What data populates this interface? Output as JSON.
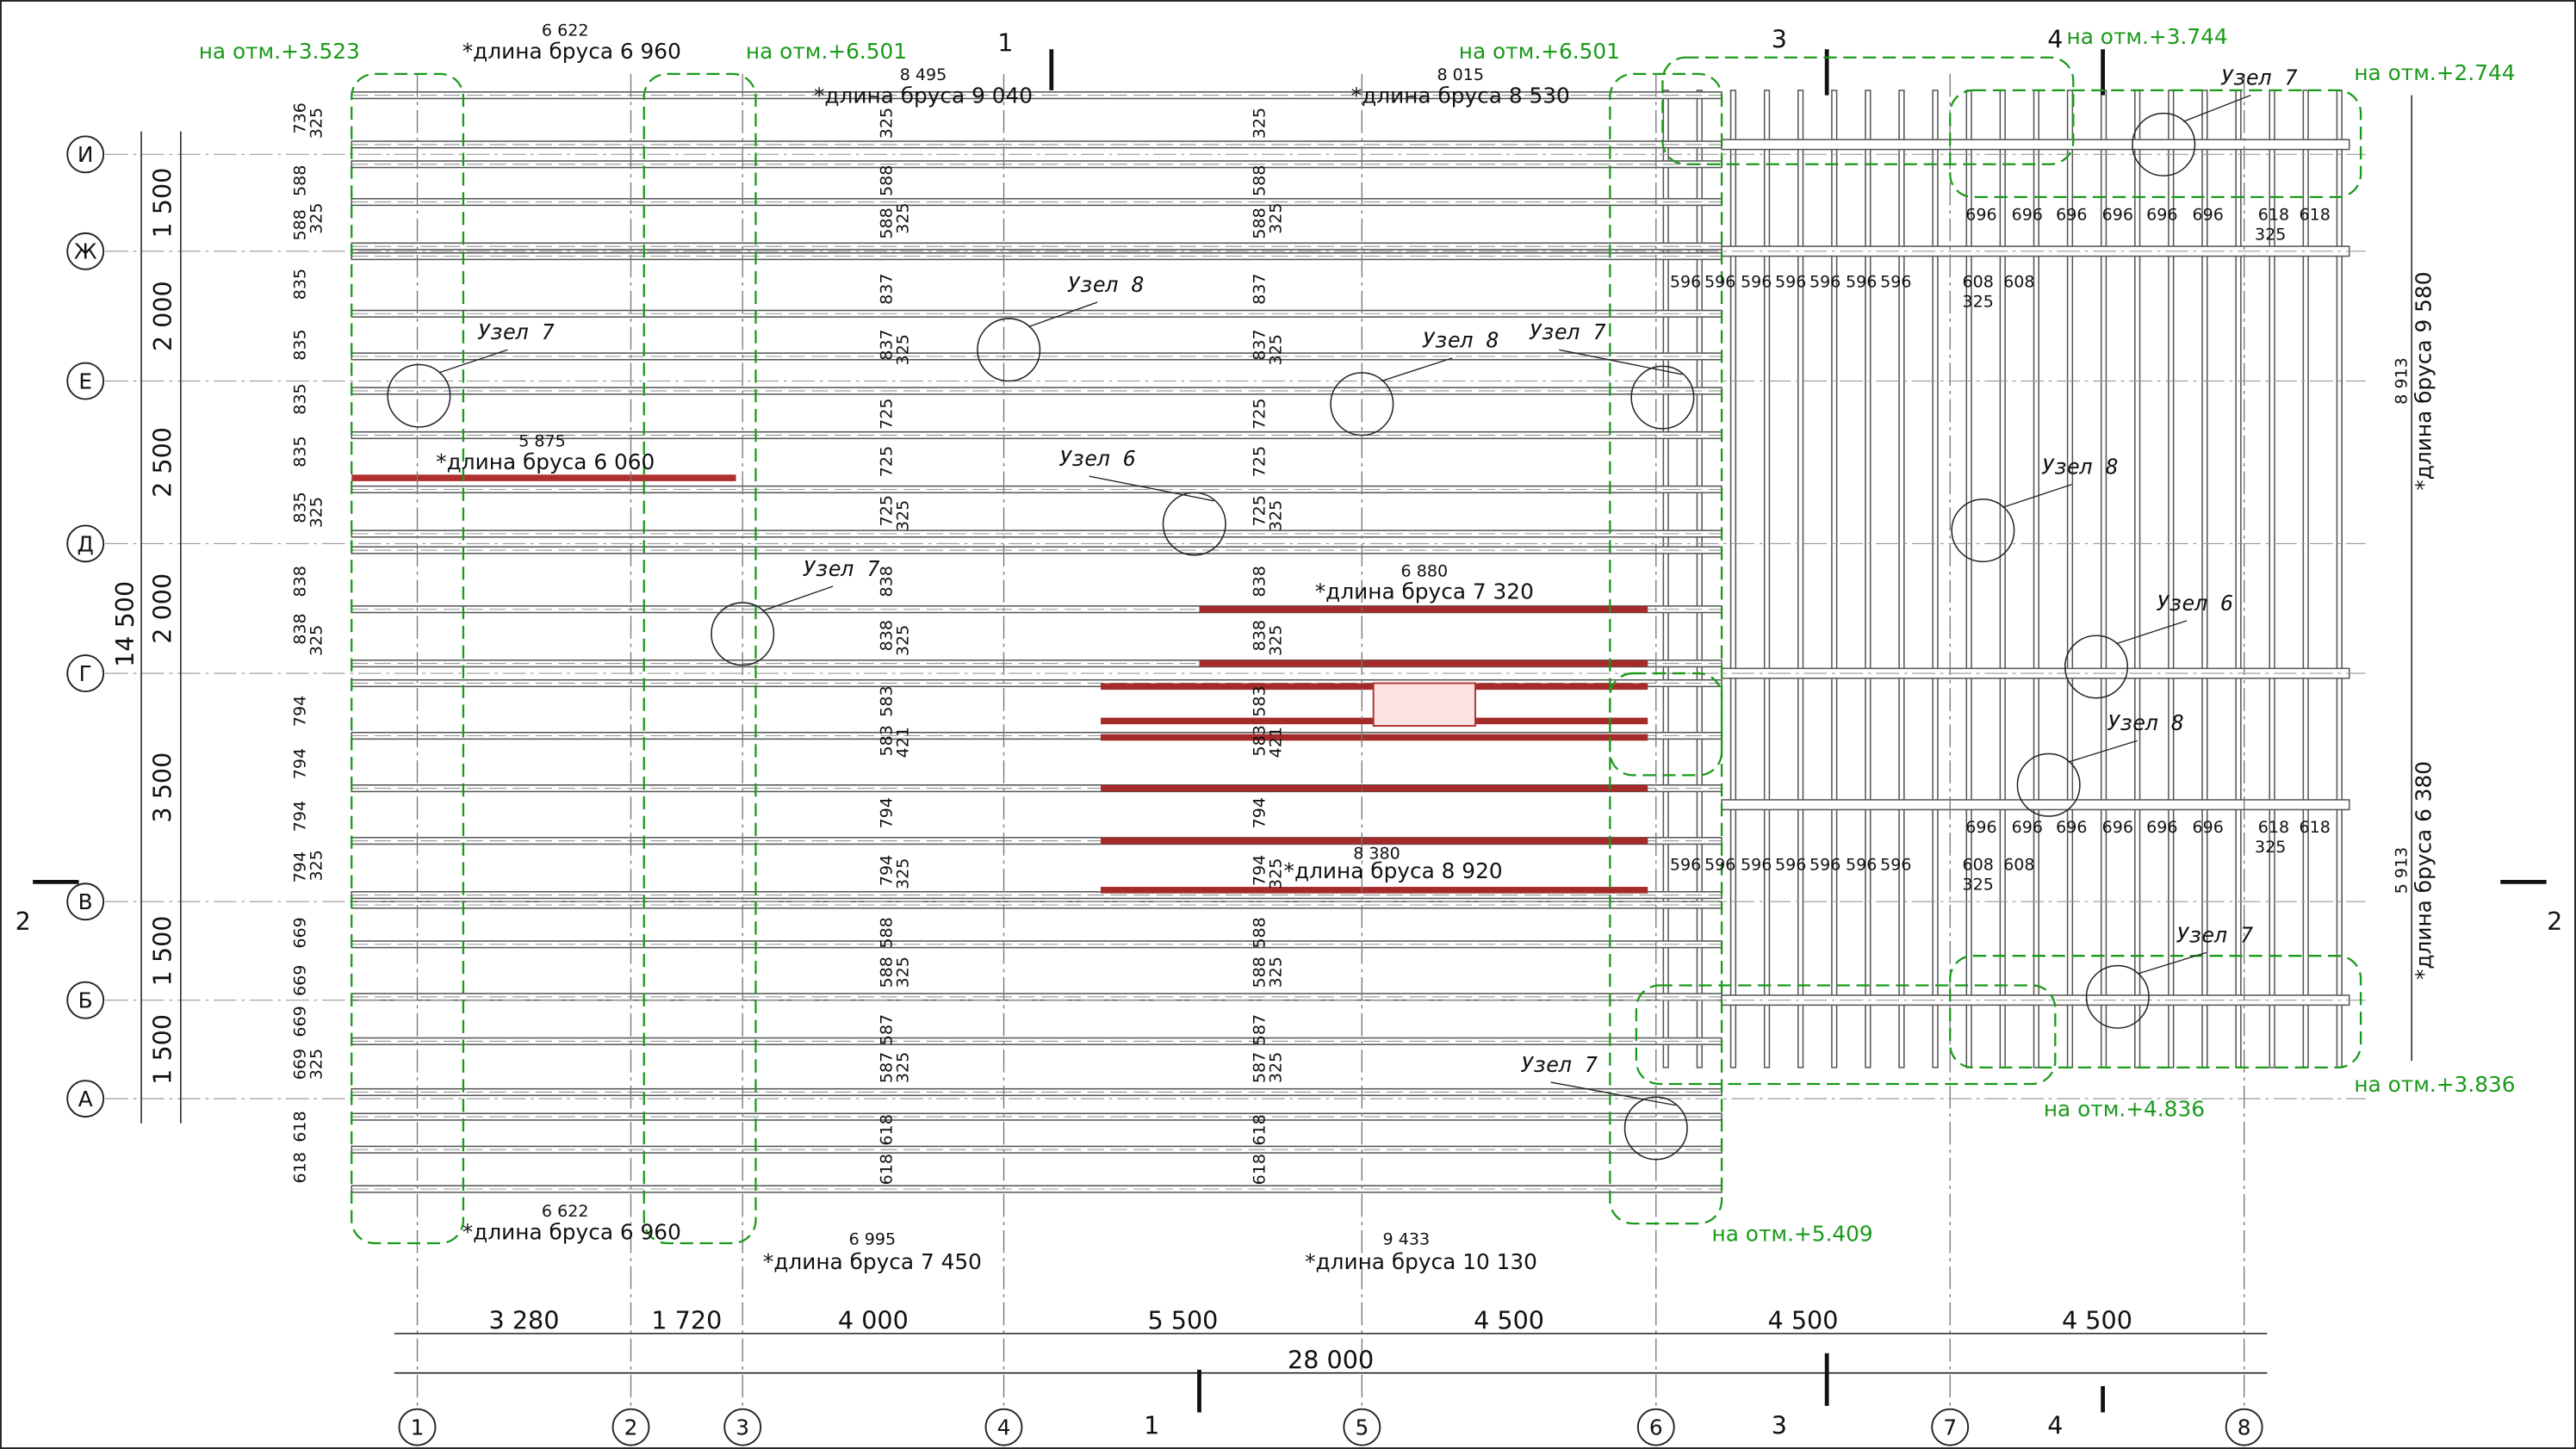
{
  "axes": {
    "columns": [
      "1",
      "2",
      "3",
      "4",
      "5",
      "6",
      "7",
      "8"
    ],
    "rows": [
      "И",
      "Ж",
      "Е",
      "Д",
      "Г",
      "В",
      "Б",
      "А"
    ],
    "column_spacing": [
      "3 280",
      "1 720",
      "4 000",
      "5 500",
      "4 500",
      "4 500",
      "4 500"
    ],
    "column_total": "28 000",
    "row_spacing": [
      "1 500",
      "2 000",
      "2 500",
      "2 000",
      "3 500",
      "1 500",
      "1 500"
    ],
    "row_total": "14 500"
  },
  "beam_lengths": [
    {
      "dimension": "6 622",
      "label": "*длина бруса 6 960"
    },
    {
      "dimension": "8 495",
      "label": "*длина бруса 9 040"
    },
    {
      "dimension": "8 015",
      "label": "*длина бруса 8 530"
    },
    {
      "dimension": "5 875",
      "label": "*длина бруса 6 060"
    },
    {
      "dimension": "6 880",
      "label": "*длина бруса 7 320"
    },
    {
      "dimension": "8 380",
      "label": "*длина бруса 8 920"
    },
    {
      "dimension": "6 622",
      "label": "*длина бруса 6 960"
    },
    {
      "dimension": "6 995",
      "label": "*длина бруса 7 450"
    },
    {
      "dimension": "9 433",
      "label": "*длина бруса 10 130"
    },
    {
      "dimension": "8 913",
      "label": "*длина бруса 9 580"
    },
    {
      "dimension": "5 913",
      "label": "*длина бруса 6 380"
    }
  ],
  "elevations": [
    "на отм.+3.523",
    "на отм.+6.501",
    "на отм.+6.501",
    "на отм.+3.744",
    "на отм.+2.744",
    "на отм.+3.836",
    "на отм.+4.836",
    "на отм.+5.409"
  ],
  "nodes": [
    "Узел 7",
    "Узел 8",
    "Узел 8",
    "Узел 7",
    "Узел 6",
    "Узел 7",
    "Узел 7",
    "Узел 8",
    "Узел 6",
    "Узел 8",
    "Узел 7",
    "Узел 7"
  ],
  "sections": [
    "1",
    "1",
    "2",
    "2",
    "3",
    "3",
    "4",
    "4"
  ],
  "dimension_chains": {
    "left": [
      "736",
      "588",
      "588",
      "835",
      "835",
      "835",
      "835",
      "835",
      "838",
      "838",
      "794",
      "794",
      "794",
      "794",
      "669",
      "669",
      "669",
      "669",
      "618",
      "618"
    ],
    "left_inner": [
      "325",
      "325",
      "325",
      "325",
      "325",
      "325"
    ],
    "beams": [
      "325",
      "588",
      "588",
      "325",
      "837",
      "837",
      "325",
      "725",
      "725",
      "725",
      "325",
      "838",
      "838",
      "325",
      "583",
      "583",
      "421",
      "794",
      "794",
      "325",
      "588",
      "588",
      "325",
      "587",
      "587",
      "325",
      "618",
      "618"
    ],
    "rafters_596": [
      "596",
      "596",
      "596",
      "596",
      "596",
      "596",
      "596",
      "608",
      "608",
      "325"
    ],
    "rafters_696": [
      "696",
      "696",
      "696",
      "696",
      "696",
      "696",
      "618",
      "618",
      "325"
    ]
  }
}
